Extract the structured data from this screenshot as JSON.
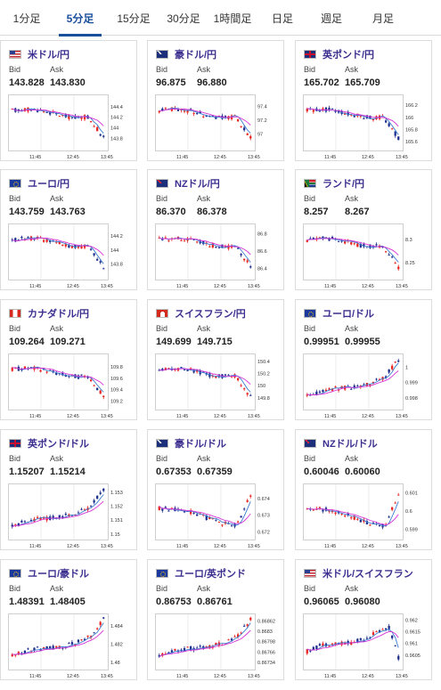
{
  "tabs": [
    {
      "label": "1分足",
      "active": false
    },
    {
      "label": "5分足",
      "active": true
    },
    {
      "label": "15分足",
      "active": false
    },
    {
      "label": "30分足",
      "active": false
    },
    {
      "label": "1時間足",
      "active": false
    },
    {
      "label": "日足",
      "active": false
    },
    {
      "label": "週足",
      "active": false
    },
    {
      "label": "月足",
      "active": false
    }
  ],
  "labels": {
    "bid": "Bid",
    "ask": "Ask"
  },
  "colors": {
    "up": "#e8251f",
    "down": "#1c2f8c",
    "ma": "#d634d6",
    "ma2": "#3d7bd1",
    "pair_text": "#3b2e8f",
    "tab_active": "#1a4f9c"
  },
  "chart_data": [
    {
      "type": "candlestick",
      "pair": "米ドル/円",
      "bid": "143.828",
      "ask": "143.830",
      "flag": "flag-us-icon",
      "trend": "down",
      "x_ticks": [
        "11:45",
        "12:45",
        "13:45"
      ],
      "y_ticks": [
        "144.4",
        "144.2",
        "144",
        "143.8"
      ],
      "ylim": [
        143.62,
        144.6
      ]
    },
    {
      "type": "candlestick",
      "pair": "豪ドル/円",
      "bid": "96.875",
      "ask": "96.880",
      "flag": "flag-au-icon",
      "trend": "down",
      "x_ticks": [
        "11:45",
        "12:45",
        "13:45"
      ],
      "y_ticks": [
        "97.4",
        "97.2",
        "97"
      ],
      "ylim": [
        96.8,
        97.55
      ]
    },
    {
      "type": "candlestick",
      "pair": "英ポンド/円",
      "bid": "165.702",
      "ask": "165.709",
      "flag": "flag-uk-icon",
      "trend": "down",
      "x_ticks": [
        "11:45",
        "12:45",
        "13:45"
      ],
      "y_ticks": [
        "166.2",
        "166",
        "165.8",
        "165.6"
      ],
      "ylim": [
        165.5,
        166.35
      ]
    },
    {
      "type": "candlestick",
      "pair": "ユーロ/円",
      "bid": "143.759",
      "ask": "143.763",
      "flag": "flag-eu-icon",
      "trend": "down",
      "x_ticks": [
        "11:45",
        "12:45",
        "13:45"
      ],
      "y_ticks": [
        "144.2",
        "144",
        "143.8"
      ],
      "ylim": [
        143.62,
        144.35
      ]
    },
    {
      "type": "candlestick",
      "pair": "NZドル/円",
      "bid": "86.370",
      "ask": "86.378",
      "flag": "flag-nz-icon",
      "trend": "down",
      "x_ticks": [
        "11:45",
        "12:45",
        "13:45"
      ],
      "y_ticks": [
        "86.8",
        "86.6",
        "86.4"
      ],
      "ylim": [
        86.3,
        86.9
      ]
    },
    {
      "type": "candlestick",
      "pair": "ランド/円",
      "bid": "8.257",
      "ask": "8.267",
      "flag": "flag-za-icon",
      "trend": "down",
      "x_ticks": [
        "11:45",
        "12:45",
        "13:45"
      ],
      "y_ticks": [
        "8.3",
        "8.25"
      ],
      "ylim": [
        8.22,
        8.33
      ]
    },
    {
      "type": "candlestick",
      "pair": "カナダドル/円",
      "bid": "109.264",
      "ask": "109.271",
      "flag": "flag-ca-icon",
      "trend": "down",
      "x_ticks": [
        "11:45",
        "12:45",
        "13:45"
      ],
      "y_ticks": [
        "109.8",
        "109.6",
        "109.4",
        "109.2"
      ],
      "ylim": [
        109.1,
        110.0
      ]
    },
    {
      "type": "candlestick",
      "pair": "スイスフラン/円",
      "bid": "149.699",
      "ask": "149.715",
      "flag": "flag-ch-icon",
      "trend": "down",
      "x_ticks": [
        "11:45",
        "12:45",
        "13:45"
      ],
      "y_ticks": [
        "150.4",
        "150.2",
        "150",
        "149.8"
      ],
      "ylim": [
        149.65,
        150.5
      ]
    },
    {
      "type": "candlestick",
      "pair": "ユーロ/ドル",
      "bid": "0.99951",
      "ask": "0.99955",
      "flag": "flag-eu-icon",
      "trend": "up",
      "x_ticks": [
        "11:45",
        "12:45",
        "13:45"
      ],
      "y_ticks": [
        "1",
        "0.999",
        "0.998"
      ],
      "ylim": [
        0.9974,
        1.0008
      ]
    },
    {
      "type": "candlestick",
      "pair": "英ポンド/ドル",
      "bid": "1.15207",
      "ask": "1.15214",
      "flag": "flag-uk-icon",
      "trend": "up",
      "x_ticks": [
        "11:45",
        "12:45",
        "13:45"
      ],
      "y_ticks": [
        "1.153",
        "1.152",
        "1.151",
        "1.15"
      ],
      "ylim": [
        1.1498,
        1.1535
      ]
    },
    {
      "type": "candlestick",
      "pair": "豪ドル/ドル",
      "bid": "0.67353",
      "ask": "0.67359",
      "flag": "flag-au-icon",
      "trend": "dip-up",
      "x_ticks": [
        "11:45",
        "12:45",
        "13:45"
      ],
      "y_ticks": [
        "0.674",
        "0.673",
        "0.672"
      ],
      "ylim": [
        0.6717,
        0.6748
      ]
    },
    {
      "type": "candlestick",
      "pair": "NZドル/ドル",
      "bid": "0.60046",
      "ask": "0.60060",
      "flag": "flag-nz-icon",
      "trend": "dip-up",
      "x_ticks": [
        "11:45",
        "12:45",
        "13:45"
      ],
      "y_ticks": [
        "0.601",
        "0.6",
        "0.599"
      ],
      "ylim": [
        0.5986,
        0.6014
      ]
    },
    {
      "type": "candlestick",
      "pair": "ユーロ/豪ドル",
      "bid": "1.48391",
      "ask": "1.48405",
      "flag": "flag-eu-icon",
      "trend": "up",
      "x_ticks": [
        "11:45",
        "12:45",
        "13:45"
      ],
      "y_ticks": [
        "1.484",
        "1.482",
        "1.48"
      ],
      "ylim": [
        1.4795,
        1.4852
      ]
    },
    {
      "type": "candlestick",
      "pair": "ユーロ/英ポンド",
      "bid": "0.86753",
      "ask": "0.86761",
      "flag": "flag-eu-icon",
      "trend": "up",
      "x_ticks": [
        "11:45",
        "12:45",
        "13:45"
      ],
      "y_ticks": [
        "0.86862",
        "0.8683",
        "0.86798",
        "0.86766",
        "0.86734"
      ],
      "ylim": [
        0.8672,
        0.8688
      ]
    },
    {
      "type": "candlestick",
      "pair": "米ドル/スイスフラン",
      "bid": "0.96065",
      "ask": "0.96080",
      "flag": "flag-us-icon",
      "trend": "up-drop",
      "x_ticks": [
        "11:45",
        "12:45",
        "13:45"
      ],
      "y_ticks": [
        "0.962",
        "0.9615",
        "0.961",
        "0.9605"
      ],
      "ylim": [
        0.96,
        0.9622
      ]
    }
  ]
}
